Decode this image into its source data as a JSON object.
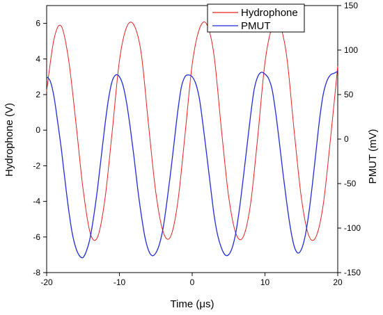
{
  "chart_data": {
    "type": "line",
    "title": "",
    "xlabel": "Time (μs)",
    "ylabel": "Hydrophone (V)",
    "y2label": "PMUT (mV)",
    "xlim": [
      -20,
      20
    ],
    "ylim": [
      -8,
      7
    ],
    "y2lim": [
      -150,
      150
    ],
    "xticks": [
      -20,
      -10,
      0,
      10,
      20
    ],
    "yticks": [
      -8,
      -6,
      -4,
      -2,
      0,
      2,
      4,
      6
    ],
    "y2ticks": [
      -150,
      -100,
      -50,
      0,
      50,
      100,
      150
    ],
    "grid": false,
    "legend": "top-right",
    "series": [
      {
        "name": "Hydrophone",
        "axis": "left",
        "color": "#e8211f",
        "x": [
          -20,
          -19,
          -18,
          -17,
          -16,
          -15,
          -14,
          -13,
          -12,
          -11,
          -10,
          -9,
          -8,
          -7,
          -6,
          -5,
          -4,
          -3,
          -2,
          -1,
          0,
          1,
          2,
          3,
          4,
          5,
          6,
          7,
          8,
          9,
          10,
          11,
          12,
          13,
          14,
          15,
          16,
          17,
          18,
          19,
          20
        ],
        "values": [
          2.2,
          5.1,
          5.85,
          4.0,
          0.5,
          -3.3,
          -5.8,
          -6.0,
          -3.9,
          -0.1,
          3.9,
          5.8,
          5.9,
          4.3,
          0.3,
          -3.5,
          -5.7,
          -6.0,
          -4.1,
          -0.3,
          3.7,
          5.7,
          5.95,
          4.2,
          0.1,
          -3.7,
          -5.8,
          -6.0,
          -4.2,
          -0.4,
          3.8,
          5.8,
          5.95,
          4.1,
          0.0,
          -3.8,
          -5.9,
          -6.0,
          -4.2,
          -0.5,
          3.6
        ]
      },
      {
        "name": "PMUT",
        "axis": "right",
        "color": "#1f2bdc",
        "x": [
          -20,
          -19.5,
          -19,
          -18.5,
          -18,
          -17.5,
          -17,
          -16.5,
          -16,
          -15.5,
          -15,
          -14.5,
          -14,
          -13.5,
          -13,
          -12.5,
          -12,
          -11.5,
          -11,
          -10.5,
          -10,
          -9.5,
          -9,
          -8.5,
          -8,
          -7.5,
          -7,
          -6.5,
          -6,
          -5.5,
          -5,
          -4.5,
          -4,
          -3.5,
          -3,
          -2.5,
          -2,
          -1.5,
          -1,
          -0.5,
          0,
          0.5,
          1,
          1.5,
          2,
          2.5,
          3,
          3.5,
          4,
          4.5,
          5,
          5.5,
          6,
          6.5,
          7,
          7.5,
          8,
          8.5,
          9,
          9.5,
          10,
          10.5,
          11,
          11.5,
          12,
          12.5,
          13,
          13.5,
          14,
          14.5,
          15,
          15.5,
          16,
          16.5,
          17,
          17.5,
          18,
          18.5,
          19,
          19.5,
          20
        ],
        "values": [
          70,
          65,
          48,
          20,
          -10,
          -45,
          -78,
          -105,
          -122,
          -131,
          -133,
          -125,
          -110,
          -85,
          -55,
          -20,
          15,
          45,
          65,
          72,
          70,
          60,
          40,
          12,
          -20,
          -55,
          -85,
          -110,
          -125,
          -131,
          -128,
          -118,
          -100,
          -72,
          -40,
          -5,
          30,
          58,
          70,
          72,
          70,
          62,
          45,
          15,
          -18,
          -52,
          -85,
          -108,
          -122,
          -130,
          -130,
          -122,
          -105,
          -78,
          -45,
          -10,
          25,
          55,
          70,
          75,
          73,
          68,
          55,
          28,
          -5,
          -40,
          -72,
          -100,
          -120,
          -128,
          -124,
          -110,
          -85,
          -52,
          -15,
          22,
          50,
          65,
          72,
          74,
          76
        ]
      }
    ]
  }
}
